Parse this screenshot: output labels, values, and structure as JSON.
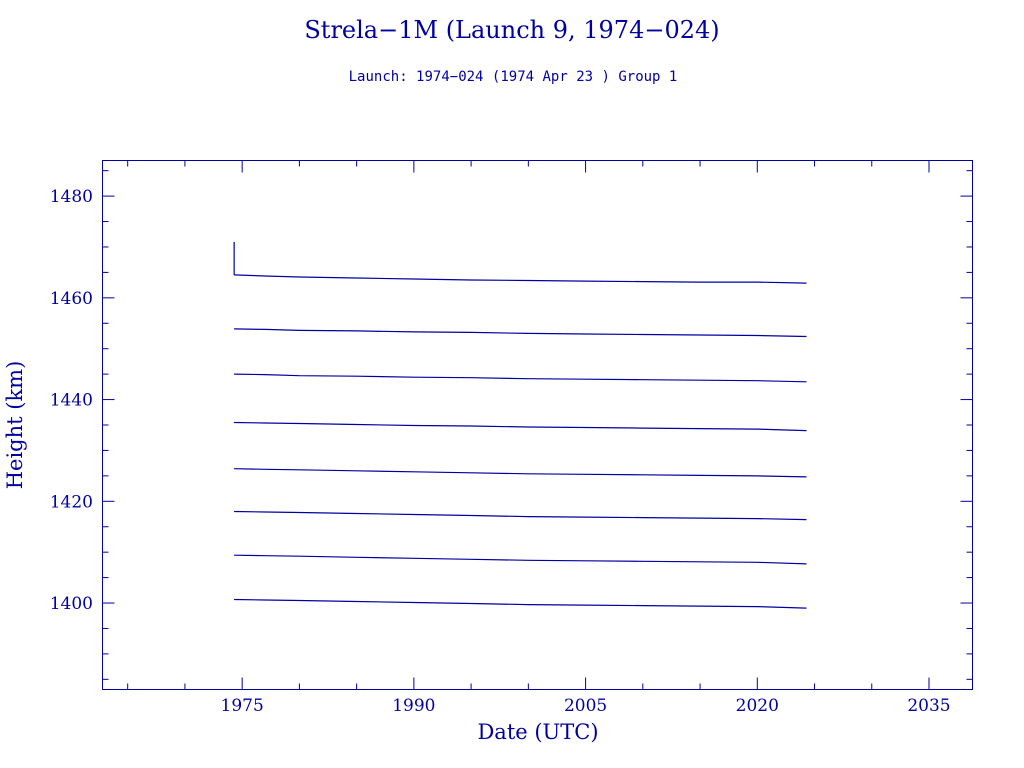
{
  "chart_data": {
    "type": "line",
    "title": "Strela−1M (Launch 9, 1974−024)",
    "subtitle": "Launch: 1974−024  (1974 Apr 23 )  Group 1",
    "xlabel": "Date (UTC)",
    "ylabel": "Height (km)",
    "xlim": [
      1962.8,
      2038.8
    ],
    "ylim": [
      1383.0,
      1487.0
    ],
    "x_ticks": [
      1975,
      1990,
      2005,
      2020,
      2035
    ],
    "y_ticks": [
      1400,
      1420,
      1440,
      1460,
      1480
    ],
    "grid": false,
    "legend": "none",
    "color": "#0000a0",
    "launch_spike": {
      "x": 1974.3,
      "y": [
        1464.5,
        1471.0
      ]
    },
    "series": [
      {
        "x": [
          1974.3,
          1977.0,
          1980.0,
          1985.0,
          1990.0,
          1995.0,
          2000.0,
          2005.0,
          2010.0,
          2015.0,
          2020.0,
          2024.3
        ],
        "values": [
          1464.5,
          1464.3,
          1464.1,
          1463.9,
          1463.7,
          1463.5,
          1463.4,
          1463.3,
          1463.2,
          1463.1,
          1463.1,
          1462.9
        ]
      },
      {
        "x": [
          1974.3,
          1977.0,
          1980.0,
          1985.0,
          1990.0,
          1995.0,
          2000.0,
          2005.0,
          2010.0,
          2015.0,
          2020.0,
          2024.3
        ],
        "values": [
          1453.9,
          1453.8,
          1453.6,
          1453.5,
          1453.3,
          1453.2,
          1453.0,
          1452.9,
          1452.8,
          1452.7,
          1452.6,
          1452.4
        ]
      },
      {
        "x": [
          1974.3,
          1977.0,
          1980.0,
          1985.0,
          1990.0,
          1995.0,
          2000.0,
          2005.0,
          2010.0,
          2015.0,
          2020.0,
          2024.3
        ],
        "values": [
          1445.0,
          1444.9,
          1444.7,
          1444.6,
          1444.4,
          1444.3,
          1444.1,
          1444.0,
          1443.9,
          1443.8,
          1443.7,
          1443.5
        ]
      },
      {
        "x": [
          1974.3,
          1977.0,
          1980.0,
          1985.0,
          1990.0,
          1995.0,
          2000.0,
          2005.0,
          2010.0,
          2015.0,
          2020.0,
          2024.3
        ],
        "values": [
          1435.5,
          1435.4,
          1435.3,
          1435.1,
          1434.9,
          1434.8,
          1434.6,
          1434.5,
          1434.4,
          1434.3,
          1434.2,
          1433.9
        ]
      },
      {
        "x": [
          1974.3,
          1977.0,
          1980.0,
          1985.0,
          1990.0,
          1995.0,
          2000.0,
          2005.0,
          2010.0,
          2015.0,
          2020.0,
          2024.3
        ],
        "values": [
          1426.4,
          1426.3,
          1426.2,
          1426.0,
          1425.8,
          1425.6,
          1425.4,
          1425.3,
          1425.2,
          1425.1,
          1425.0,
          1424.8
        ]
      },
      {
        "x": [
          1974.3,
          1977.0,
          1980.0,
          1985.0,
          1990.0,
          1995.0,
          2000.0,
          2005.0,
          2010.0,
          2015.0,
          2020.0,
          2024.3
        ],
        "values": [
          1418.0,
          1417.9,
          1417.8,
          1417.6,
          1417.4,
          1417.2,
          1417.0,
          1416.9,
          1416.8,
          1416.7,
          1416.6,
          1416.4
        ]
      },
      {
        "x": [
          1974.3,
          1977.0,
          1980.0,
          1985.0,
          1990.0,
          1995.0,
          2000.0,
          2005.0,
          2010.0,
          2015.0,
          2020.0,
          2024.3
        ],
        "values": [
          1409.4,
          1409.3,
          1409.2,
          1409.0,
          1408.8,
          1408.6,
          1408.4,
          1408.3,
          1408.2,
          1408.1,
          1408.0,
          1407.7
        ]
      },
      {
        "x": [
          1974.3,
          1977.0,
          1980.0,
          1985.0,
          1990.0,
          1995.0,
          2000.0,
          2005.0,
          2010.0,
          2015.0,
          2020.0,
          2024.3
        ],
        "values": [
          1400.7,
          1400.6,
          1400.5,
          1400.3,
          1400.1,
          1399.9,
          1399.7,
          1399.6,
          1399.5,
          1399.4,
          1399.3,
          1399.0
        ]
      }
    ]
  }
}
